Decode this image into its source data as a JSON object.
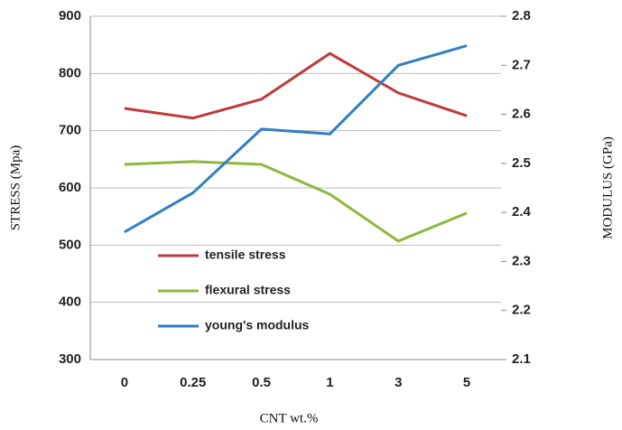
{
  "chart_data": {
    "type": "line",
    "x_label": "CNT wt.%",
    "y_label": "STRESS (Mpa)",
    "y2_label": "MODULUS (GPa)",
    "categories": [
      "0",
      "0.25",
      "0.5",
      "1",
      "3",
      "5"
    ],
    "series": [
      {
        "name": "tensile stress",
        "color": "#c0393b",
        "values": [
          739,
          722,
          755,
          835,
          766,
          726
        ]
      },
      {
        "name": "flexural stress",
        "color": "#8cb83d",
        "values": [
          641,
          646,
          641,
          589,
          507,
          556
        ]
      },
      {
        "name": "young's modulus",
        "color": "#2f7fc4",
        "axis": "y2",
        "values": [
          2.36,
          2.44,
          2.57,
          2.56,
          2.7,
          2.74
        ]
      }
    ],
    "ylim": [
      300,
      900
    ],
    "yticks": [
      300,
      400,
      500,
      600,
      700,
      800,
      900
    ],
    "y2lim": [
      2.1,
      2.8
    ],
    "y2ticks": [
      2.1,
      2.2,
      2.3,
      2.4,
      2.5,
      2.6,
      2.7,
      2.8
    ],
    "grid": true,
    "legend": "lower left"
  }
}
